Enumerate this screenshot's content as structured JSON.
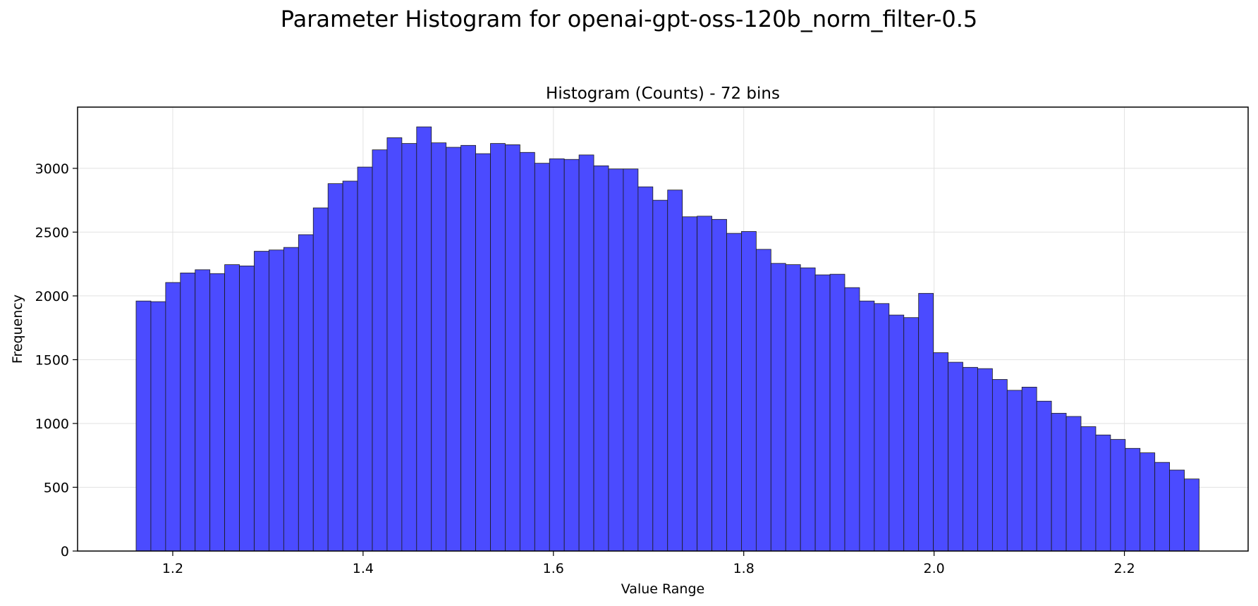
{
  "figure": {
    "suptitle": "Parameter Histogram for openai-gpt-oss-120b_norm_filter-0.5"
  },
  "chart_data": {
    "type": "bar",
    "title": "Histogram (Counts) - 72 bins",
    "xlabel": "Value Range",
    "ylabel": "Frequency",
    "xlim": [
      1.1,
      2.33
    ],
    "ylim": [
      0,
      3480
    ],
    "xticks": [
      1.2,
      1.4,
      1.6,
      1.8,
      2.0,
      2.2
    ],
    "xtick_labels": [
      "1.2",
      "1.4",
      "1.6",
      "1.8",
      "2.0",
      "2.2"
    ],
    "yticks": [
      0,
      500,
      1000,
      1500,
      2000,
      2500,
      3000
    ],
    "ytick_labels": [
      "0",
      "500",
      "1000",
      "1500",
      "2000",
      "2500",
      "3000"
    ],
    "grid": true,
    "bar_color": "#4b4bff",
    "edge_color": "#1a1a1a",
    "bin_start": 1.1615,
    "bin_end": 2.2785,
    "values": [
      1960,
      1955,
      2105,
      2180,
      2205,
      2175,
      2245,
      2235,
      2350,
      2360,
      2380,
      2480,
      2690,
      2880,
      2900,
      3010,
      3145,
      3240,
      3195,
      3325,
      3200,
      3165,
      3180,
      3115,
      3195,
      3185,
      3125,
      3040,
      3075,
      3070,
      3105,
      3020,
      2995,
      2995,
      2855,
      2750,
      2830,
      2620,
      2625,
      2600,
      2490,
      2505,
      2365,
      2255,
      2245,
      2220,
      2165,
      2170,
      2065,
      1960,
      1940,
      1850,
      1830,
      2020,
      1555,
      1480,
      1440,
      1430,
      1345,
      1260,
      1285,
      1175,
      1080,
      1055,
      975,
      910,
      875,
      805,
      770,
      695,
      635,
      565
    ]
  }
}
